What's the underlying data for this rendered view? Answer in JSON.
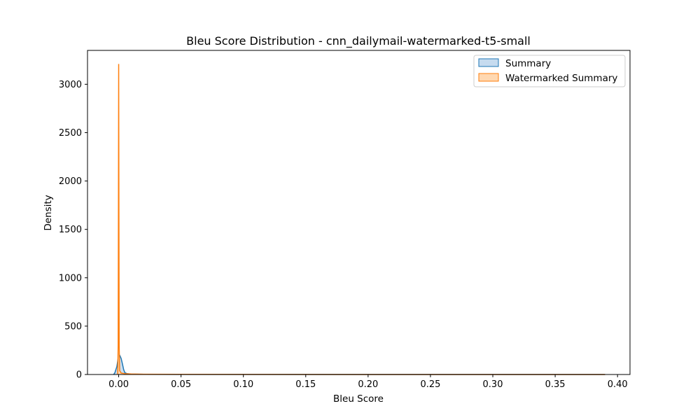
{
  "chart_data": {
    "type": "area",
    "title": "Bleu Score Distribution - cnn_dailymail-watermarked-t5-small",
    "xlabel": "Bleu Score",
    "ylabel": "Density",
    "xlim": [
      -0.025,
      0.41
    ],
    "ylim": [
      0,
      3350
    ],
    "x_ticks": [
      0.0,
      0.05,
      0.1,
      0.15,
      0.2,
      0.25,
      0.3,
      0.35,
      0.4
    ],
    "x_tick_labels": [
      "0.00",
      "0.05",
      "0.10",
      "0.15",
      "0.20",
      "0.25",
      "0.30",
      "0.35",
      "0.40"
    ],
    "y_ticks": [
      0,
      500,
      1000,
      1500,
      2000,
      2500,
      3000
    ],
    "y_tick_labels": [
      "0",
      "500",
      "1000",
      "1500",
      "2000",
      "2500",
      "3000"
    ],
    "grid": false,
    "legend_position": "top-right",
    "series": [
      {
        "name": "Summary",
        "color": "#1f77b4",
        "fill": "#c6dbef",
        "points": [
          [
            -0.004,
            0
          ],
          [
            -0.003,
            20
          ],
          [
            -0.0015,
            80
          ],
          [
            -0.0005,
            160
          ],
          [
            0.0,
            215
          ],
          [
            0.001,
            195
          ],
          [
            0.002,
            165
          ],
          [
            0.003,
            110
          ],
          [
            0.004,
            50
          ],
          [
            0.005,
            18
          ],
          [
            0.007,
            8
          ],
          [
            0.01,
            4
          ],
          [
            0.02,
            2
          ],
          [
            0.05,
            1
          ],
          [
            0.1,
            0.5
          ],
          [
            0.2,
            0.3
          ],
          [
            0.3,
            0.3
          ],
          [
            0.39,
            0.2
          ]
        ]
      },
      {
        "name": "Watermarked Summary",
        "color": "#ff7f0e",
        "fill": "#ffd8b1",
        "points": [
          [
            -0.0008,
            0
          ],
          [
            -0.0004,
            300
          ],
          [
            -0.0002,
            1600
          ],
          [
            0.0,
            3210
          ],
          [
            0.0002,
            1600
          ],
          [
            0.0004,
            300
          ],
          [
            0.0008,
            40
          ],
          [
            0.002,
            15
          ],
          [
            0.005,
            8
          ],
          [
            0.01,
            5
          ],
          [
            0.02,
            3
          ],
          [
            0.05,
            1.5
          ],
          [
            0.1,
            0.6
          ],
          [
            0.2,
            0.3
          ],
          [
            0.3,
            0.2
          ],
          [
            0.39,
            0.1
          ]
        ]
      }
    ]
  }
}
